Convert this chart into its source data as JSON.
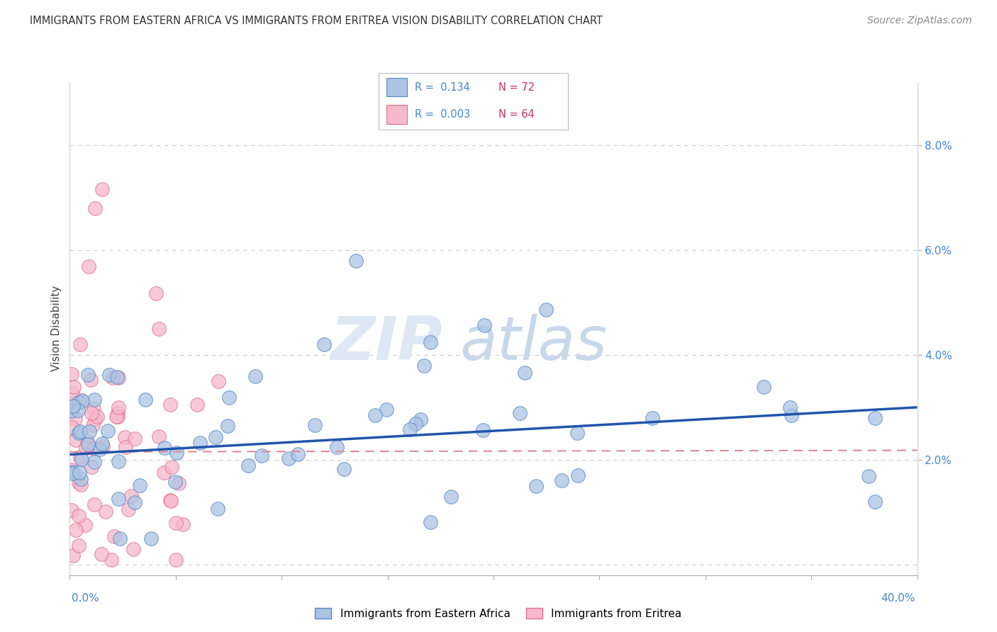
{
  "title": "IMMIGRANTS FROM EASTERN AFRICA VS IMMIGRANTS FROM ERITREA VISION DISABILITY CORRELATION CHART",
  "source": "Source: ZipAtlas.com",
  "ylabel": "Vision Disability",
  "series": [
    {
      "label": "Immigrants from Eastern Africa",
      "color": "#aac4e2",
      "edge_color": "#5588cc",
      "R": 0.134,
      "N": 72
    },
    {
      "label": "Immigrants from Eritrea",
      "color": "#f5b8cc",
      "edge_color": "#e07090",
      "R": 0.003,
      "N": 64
    }
  ],
  "xlim": [
    0.0,
    0.4
  ],
  "ylim": [
    -0.002,
    0.092
  ],
  "yticks": [
    0.0,
    0.02,
    0.04,
    0.06,
    0.08
  ],
  "ytick_labels": [
    "",
    "2.0%",
    "4.0%",
    "6.0%",
    "8.0%"
  ],
  "background_color": "#ffffff",
  "grid_color": "#cccccc",
  "blue_trend": [
    0.021,
    0.03
  ],
  "pink_trend": [
    0.0215,
    0.0218
  ],
  "blue_trend_color": "#2255aa",
  "pink_trend_color": "#e08898",
  "watermark_zip_color": "#dde8f4",
  "watermark_atlas_color": "#c8d8ec",
  "title_color": "#333333",
  "source_color": "#888888",
  "tick_label_color": "#4488cc",
  "legend_text_color_R": "#4488cc",
  "legend_text_color_N": "#cc3366"
}
